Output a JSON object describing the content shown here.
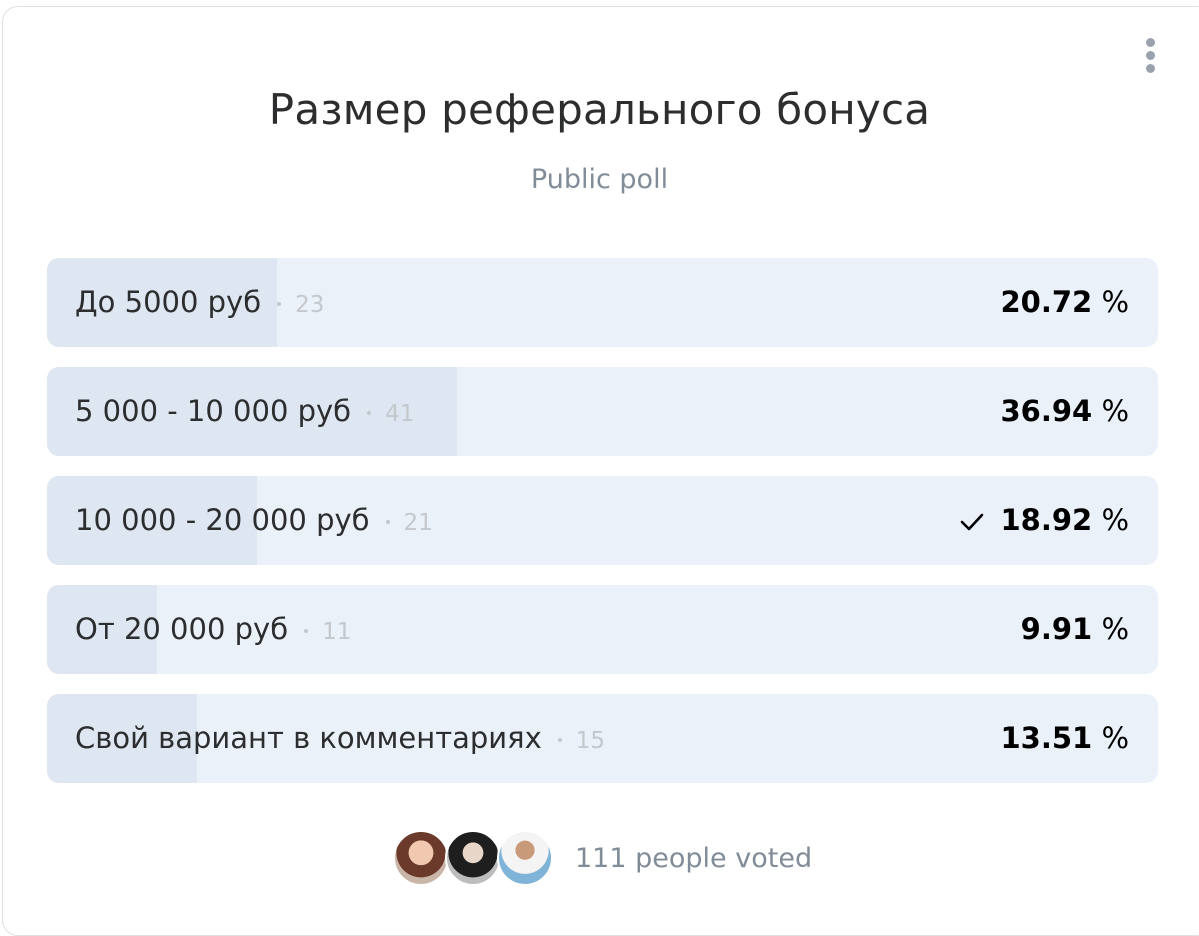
{
  "poll": {
    "title": "Размер реферального бонуса",
    "subtitle": "Public poll",
    "percent_unit": "%",
    "options": [
      {
        "label": "До 5000 руб",
        "count": 23,
        "percent": 20.72
      },
      {
        "label": "5 000 - 10 000 руб",
        "count": 41,
        "percent": 36.94
      },
      {
        "label": "10 000 - 20 000 руб",
        "count": 21,
        "percent": 18.92,
        "selected": true
      },
      {
        "label": "От 20 000 руб",
        "count": 11,
        "percent": 9.91
      },
      {
        "label": "Свой вариант в комментариях",
        "count": 15,
        "percent": 13.51
      }
    ],
    "voters_count": 111,
    "voters_text": "people voted"
  }
}
